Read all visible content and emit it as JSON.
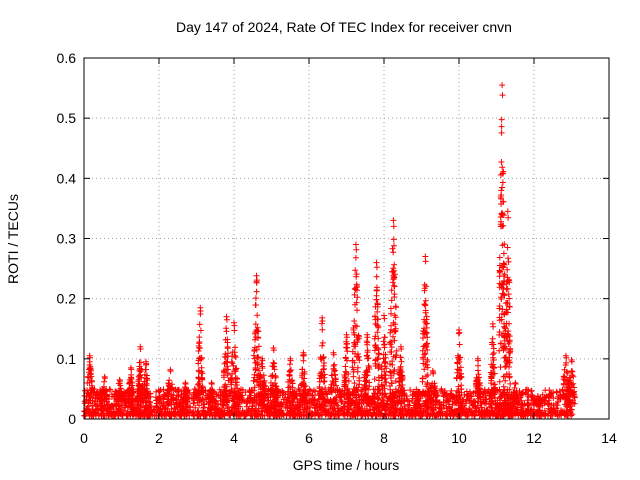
{
  "chart_data": {
    "type": "scatter",
    "title": "Day 147 of 2024, Rate Of TEC Index for receiver cnvn",
    "xlabel": "GPS time / hours",
    "ylabel": "ROTI / TECUs",
    "xlim": [
      0,
      14
    ],
    "ylim": [
      0,
      0.6
    ],
    "xticks": [
      0,
      2,
      4,
      6,
      8,
      10,
      12,
      14
    ],
    "xtick_labels": [
      "0",
      "2",
      "4",
      "6",
      "8",
      "10",
      "12",
      "14"
    ],
    "yticks": [
      0,
      0.1,
      0.2,
      0.3,
      0.4,
      0.5,
      0.6
    ],
    "ytick_labels": [
      "0",
      "0.1",
      "0.2",
      "0.3",
      "0.4",
      "0.5",
      "0.6"
    ],
    "grid": true,
    "marker": "+",
    "color": "#ff0000",
    "data_time_range": [
      0,
      13.05
    ],
    "baseline_band": [
      0.005,
      0.05
    ],
    "peaks": [
      {
        "x": 0.15,
        "y": 0.105
      },
      {
        "x": 0.55,
        "y": 0.07
      },
      {
        "x": 0.95,
        "y": 0.065
      },
      {
        "x": 1.25,
        "y": 0.085
      },
      {
        "x": 1.5,
        "y": 0.12
      },
      {
        "x": 1.65,
        "y": 0.095
      },
      {
        "x": 2.3,
        "y": 0.082
      },
      {
        "x": 2.7,
        "y": 0.06
      },
      {
        "x": 3.1,
        "y": 0.185
      },
      {
        "x": 3.4,
        "y": 0.06
      },
      {
        "x": 3.8,
        "y": 0.17
      },
      {
        "x": 4.0,
        "y": 0.16
      },
      {
        "x": 4.6,
        "y": 0.238
      },
      {
        "x": 4.75,
        "y": 0.1
      },
      {
        "x": 5.05,
        "y": 0.118
      },
      {
        "x": 5.5,
        "y": 0.1
      },
      {
        "x": 5.85,
        "y": 0.11
      },
      {
        "x": 6.35,
        "y": 0.168
      },
      {
        "x": 6.65,
        "y": 0.11
      },
      {
        "x": 7.0,
        "y": 0.14
      },
      {
        "x": 7.25,
        "y": 0.29
      },
      {
        "x": 7.55,
        "y": 0.14
      },
      {
        "x": 7.8,
        "y": 0.26
      },
      {
        "x": 8.0,
        "y": 0.172
      },
      {
        "x": 8.25,
        "y": 0.33
      },
      {
        "x": 8.45,
        "y": 0.12
      },
      {
        "x": 9.1,
        "y": 0.27
      },
      {
        "x": 9.3,
        "y": 0.08
      },
      {
        "x": 10.0,
        "y": 0.148
      },
      {
        "x": 10.5,
        "y": 0.1
      },
      {
        "x": 10.9,
        "y": 0.158
      },
      {
        "x": 11.15,
        "y": 0.555
      },
      {
        "x": 11.3,
        "y": 0.345
      },
      {
        "x": 11.5,
        "y": 0.06
      },
      {
        "x": 12.1,
        "y": 0.038
      },
      {
        "x": 12.85,
        "y": 0.105
      },
      {
        "x": 13.0,
        "y": 0.098
      }
    ]
  }
}
